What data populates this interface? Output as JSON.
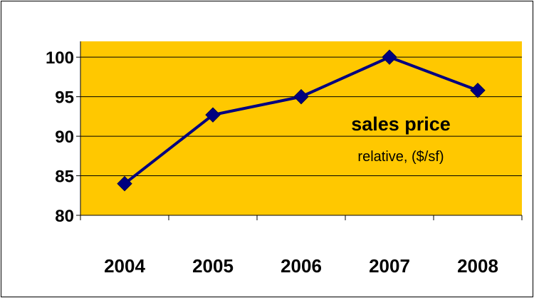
{
  "chart_data": {
    "type": "line",
    "categories": [
      "2004",
      "2005",
      "2006",
      "2007",
      "2008"
    ],
    "series": [
      {
        "values": [
          84,
          92.7,
          95,
          100,
          95.8
        ]
      }
    ],
    "ylim": [
      80,
      102
    ],
    "yticks": [
      "80",
      "85",
      "90",
      "95",
      "100"
    ],
    "annotation": {
      "title": "sales price",
      "subtitle": "relative, ($/sf)"
    },
    "grid": true,
    "colors": {
      "plot_background": "#FFC800",
      "line": "#000080",
      "marker": "#000080",
      "gridline": "#000000"
    }
  }
}
